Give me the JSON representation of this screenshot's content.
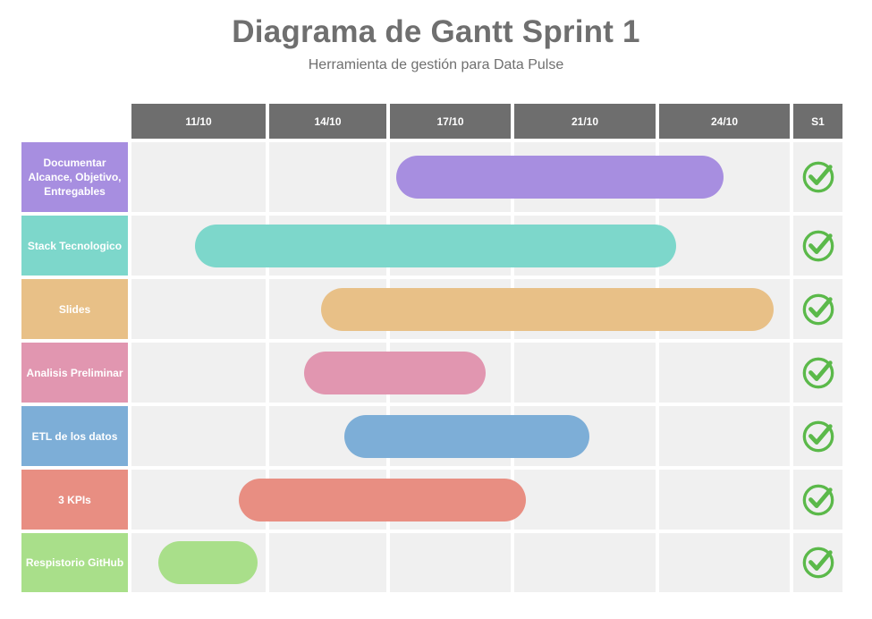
{
  "header": {
    "title": "Diagrama de Gantt Sprint 1",
    "subtitle": "Herramienta de gestión para Data Pulse"
  },
  "chart_data": {
    "type": "gantt",
    "title": "Diagrama de Gantt Sprint 1",
    "subtitle": "Herramienta de gestión para Data Pulse",
    "columns": [
      "11/10",
      "14/10",
      "17/10",
      "21/10",
      "24/10"
    ],
    "status_column": "S1",
    "tasks": [
      {
        "label": "Documentar Alcance, Objetivo, Entregables",
        "start_col": 2.05,
        "end_col": 4.49,
        "color": "#a78ee0",
        "status": "done"
      },
      {
        "label": "Stack Tecnologico",
        "start_col": 0.47,
        "end_col": 4.13,
        "color": "#7dd7cb",
        "status": "done"
      },
      {
        "label": "Slides",
        "start_col": 1.44,
        "end_col": 4.88,
        "color": "#e8c087",
        "status": "done"
      },
      {
        "label": "Analisis Preliminar",
        "start_col": 1.3,
        "end_col": 2.79,
        "color": "#e196b0",
        "status": "done"
      },
      {
        "label": "ETL de los datos",
        "start_col": 1.64,
        "end_col": 3.53,
        "color": "#7daed7",
        "status": "done"
      },
      {
        "label": "3 KPIs",
        "start_col": 0.8,
        "end_col": 3.08,
        "color": "#e88e82",
        "status": "done"
      },
      {
        "label": "Respistorio GitHub",
        "start_col": 0.2,
        "end_col": 0.94,
        "color": "#a9df8a",
        "status": "done"
      }
    ],
    "check_color": "#5bb94a"
  }
}
